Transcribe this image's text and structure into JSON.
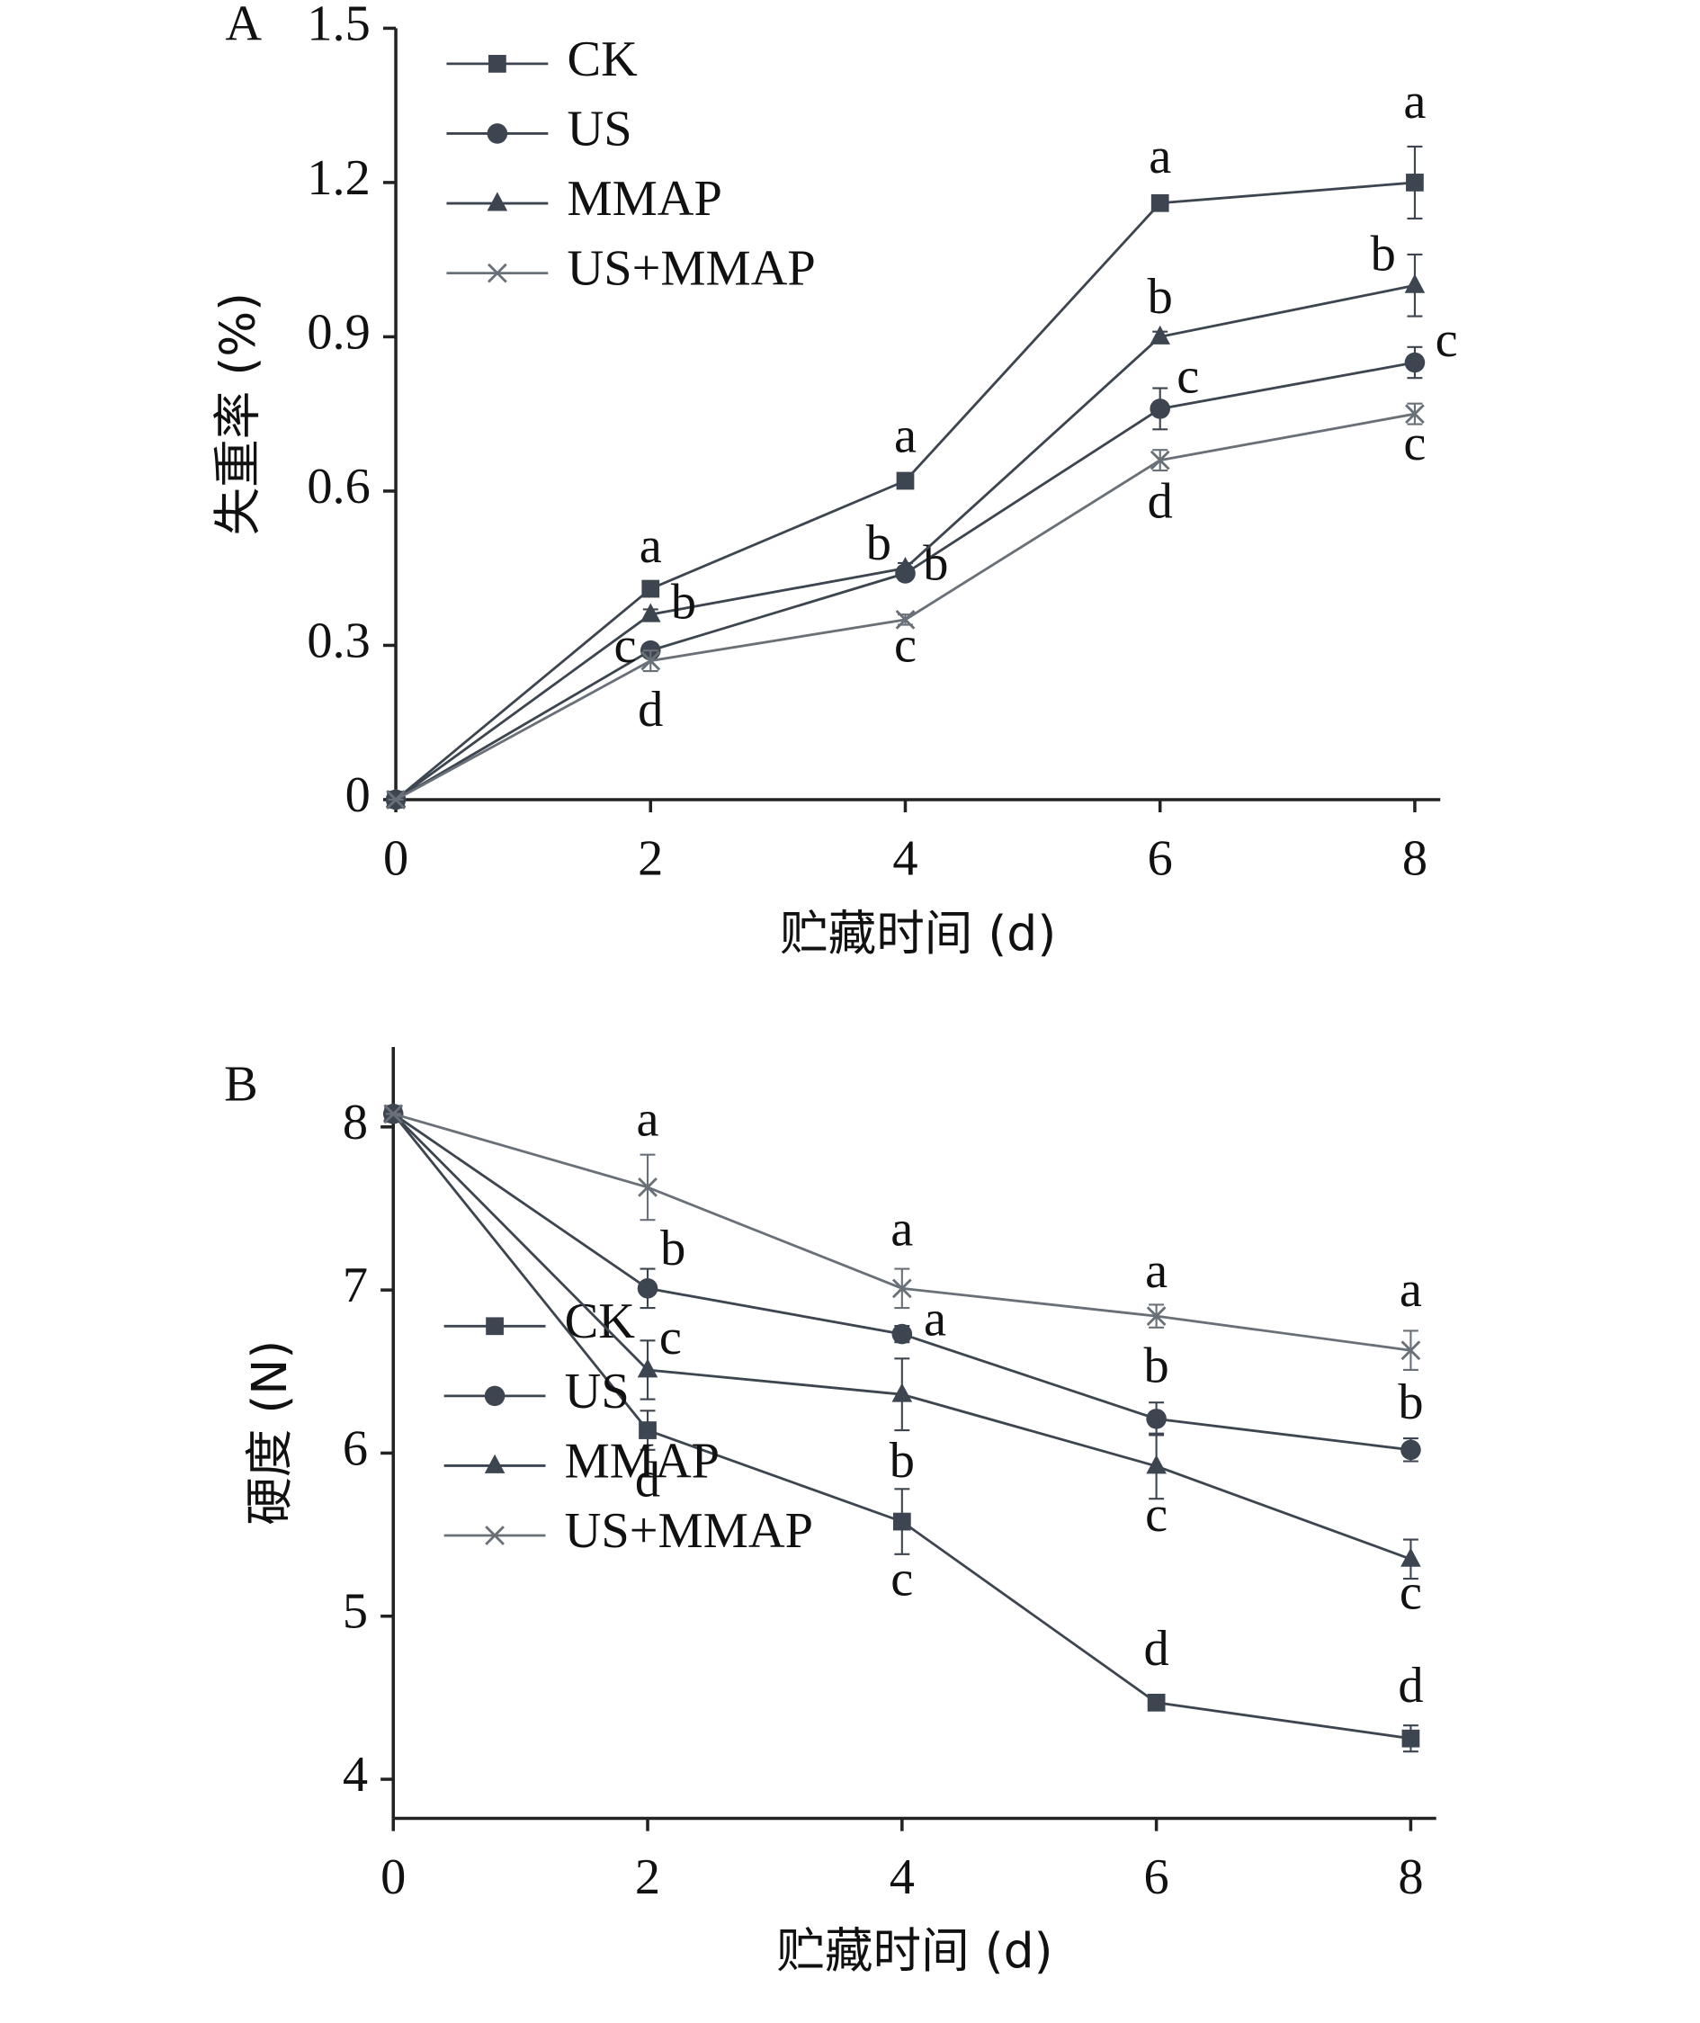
{
  "chart_data": [
    {
      "type": "line",
      "panel_label": "A",
      "y_label": "失重率 (%)",
      "x_label": "贮藏时间 (d)",
      "x": [
        0,
        2,
        4,
        6,
        8
      ],
      "xlim": [
        0,
        8.2
      ],
      "xticks": [
        0,
        2,
        4,
        6,
        8
      ],
      "ylim": [
        0,
        1.5
      ],
      "yticks": [
        0,
        0.3,
        0.6,
        0.9,
        1.2,
        1.5
      ],
      "legend": "upper left",
      "series": [
        {
          "name": "CK",
          "color": "#3d4650",
          "marker": "square",
          "values": [
            0,
            0.41,
            0.62,
            1.16,
            1.2
          ],
          "errors": [
            0,
            0.01,
            0.01,
            0.01,
            0.07
          ],
          "labels": [
            null,
            "a",
            "a",
            "a",
            "a"
          ]
        },
        {
          "name": "US",
          "color": "#3d4650",
          "marker": "circle",
          "values": [
            0,
            0.29,
            0.44,
            0.76,
            0.85
          ],
          "errors": [
            0,
            0.01,
            0.01,
            0.04,
            0.03
          ],
          "labels": [
            null,
            "c",
            "b",
            "c",
            "c"
          ]
        },
        {
          "name": "MMAP",
          "color": "#3d4650",
          "marker": "triangle",
          "values": [
            0,
            0.36,
            0.45,
            0.9,
            1.0
          ],
          "errors": [
            0,
            0.01,
            0.01,
            0.01,
            0.06
          ],
          "labels": [
            null,
            "b",
            "b",
            "b",
            "b"
          ]
        },
        {
          "name": "US+MMAP",
          "color": "#6a7078",
          "marker": "x",
          "values": [
            0,
            0.27,
            0.35,
            0.66,
            0.75
          ],
          "errors": [
            0,
            0.02,
            0.01,
            0.02,
            0.02
          ],
          "labels": [
            null,
            "d",
            "c",
            "d",
            "c"
          ]
        }
      ]
    },
    {
      "type": "line",
      "panel_label": "B",
      "y_label": "硬度 (N)",
      "x_label": "贮藏时间 (d)",
      "x": [
        0,
        2,
        4,
        6,
        8
      ],
      "xlim": [
        0,
        8.2
      ],
      "xticks": [
        0,
        2,
        4,
        6,
        8
      ],
      "ylim": [
        3.76,
        8.49
      ],
      "yticks": [
        4,
        5,
        6,
        7,
        8
      ],
      "legend": "lower left",
      "series": [
        {
          "name": "CK",
          "color": "#3d4650",
          "marker": "square",
          "values": [
            8.08,
            6.14,
            5.58,
            4.47,
            4.25
          ],
          "errors": [
            0,
            0.12,
            0.2,
            0.03,
            0.08
          ],
          "labels": [
            null,
            "d",
            "c",
            "d",
            "d"
          ]
        },
        {
          "name": "US",
          "color": "#3d4650",
          "marker": "circle",
          "values": [
            8.08,
            7.01,
            6.73,
            6.21,
            6.02
          ],
          "errors": [
            0,
            0.12,
            0.05,
            0.1,
            0.07
          ],
          "labels": [
            null,
            "b",
            "a",
            "b",
            "b"
          ]
        },
        {
          "name": "MMAP",
          "color": "#3d4650",
          "marker": "triangle",
          "values": [
            8.08,
            6.51,
            6.36,
            5.92,
            5.35
          ],
          "errors": [
            0,
            0.18,
            0.22,
            0.2,
            0.12
          ],
          "labels": [
            null,
            "c",
            "b",
            "c",
            "c"
          ]
        },
        {
          "name": "US+MMAP",
          "color": "#6a7078",
          "marker": "x",
          "values": [
            8.08,
            7.63,
            7.01,
            6.84,
            6.63
          ],
          "errors": [
            0,
            0.2,
            0.12,
            0.07,
            0.12
          ],
          "labels": [
            null,
            "a",
            "a",
            "a",
            "a"
          ]
        }
      ]
    }
  ]
}
